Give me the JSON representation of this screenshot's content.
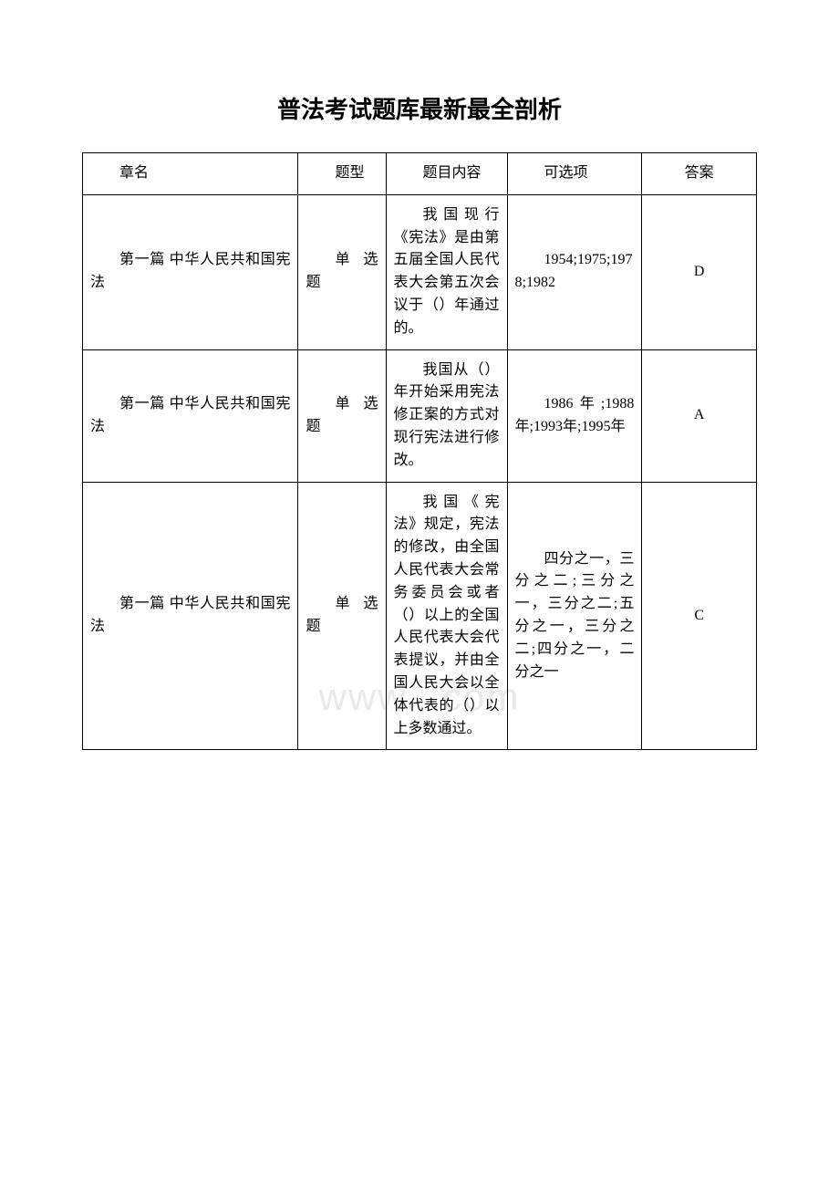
{
  "document": {
    "title": "普法考试题库最新最全剖析",
    "watermark_text": "www.      .com",
    "background_color": "#ffffff",
    "text_color": "#000000",
    "border_color": "#000000",
    "title_fontsize": 26,
    "cell_fontsize": 16
  },
  "table": {
    "columns": [
      {
        "key": "chapter",
        "label": "章名",
        "width_pct": 32,
        "align": "left"
      },
      {
        "key": "type",
        "label": "题型",
        "width_pct": 13,
        "align": "left"
      },
      {
        "key": "question",
        "label": "题目内容",
        "width_pct": 18,
        "align": "left"
      },
      {
        "key": "options",
        "label": "可选项",
        "width_pct": 20,
        "align": "left"
      },
      {
        "key": "answer",
        "label": "答案",
        "width_pct": 17,
        "align": "center"
      }
    ],
    "rows": [
      {
        "chapter": "第一篇 中华人民共和国宪法",
        "type": "单选题",
        "question": "我国现行《宪法》是由第五届全国人民代表大会第五次会议于（）年通过的。",
        "options": "1954;1975;1978;1982",
        "answer": "D"
      },
      {
        "chapter": "第一篇 中华人民共和国宪法",
        "type": "单选题",
        "question": "我国从（）年开始采用宪法修正案的方式对现行宪法进行修改。",
        "options": "1986年;1988年;1993年;1995年",
        "answer": "A"
      },
      {
        "chapter": "第一篇 中华人民共和国宪法",
        "type": "单选题",
        "question": "我国《宪法》规定，宪法的修改，由全国人民代表大会常务委员会或者（）以上的全国人民代表大会代表提议，并由全国人民大会以全体代表的（）以上多数通过。",
        "options": "四分之一，三分之二;三分之一，三分之二;五分之一，三分之二;四分之一，二分之一",
        "answer": "C"
      }
    ]
  }
}
